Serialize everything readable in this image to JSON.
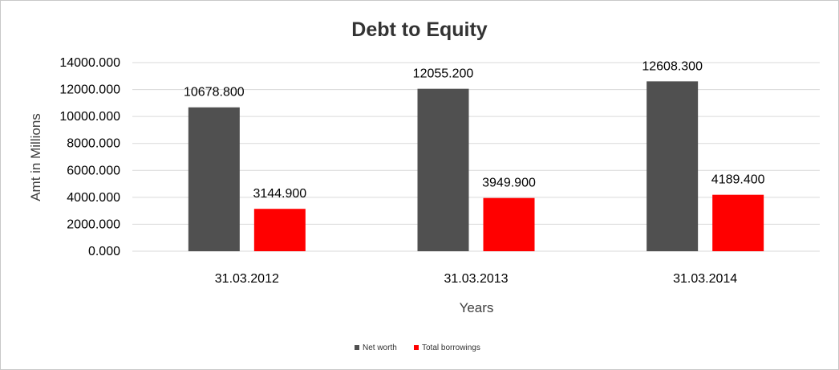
{
  "chart_data": {
    "type": "bar",
    "title": "Debt to Equity",
    "xlabel": "Years",
    "ylabel": "Amt in Millions",
    "categories": [
      "31.03.2012",
      "31.03.2013",
      "31.03.2014"
    ],
    "ylim": [
      0,
      14000
    ],
    "yticks": [
      "0.000",
      "2000.000",
      "4000.000",
      "6000.000",
      "8000.000",
      "10000.000",
      "12000.000",
      "14000.000"
    ],
    "grid": true,
    "legend_position": "bottom",
    "series": [
      {
        "name": "Net worth",
        "color": "#505050",
        "values": [
          10678.8,
          12055.2,
          12608.3
        ],
        "labels": [
          "10678.800",
          "12055.200",
          "12608.300"
        ]
      },
      {
        "name": "Total borrowings",
        "color": "#ff0000",
        "values": [
          3144.9,
          3949.9,
          4189.4
        ],
        "labels": [
          "3144.900",
          "3949.900",
          "4189.400"
        ]
      }
    ]
  }
}
